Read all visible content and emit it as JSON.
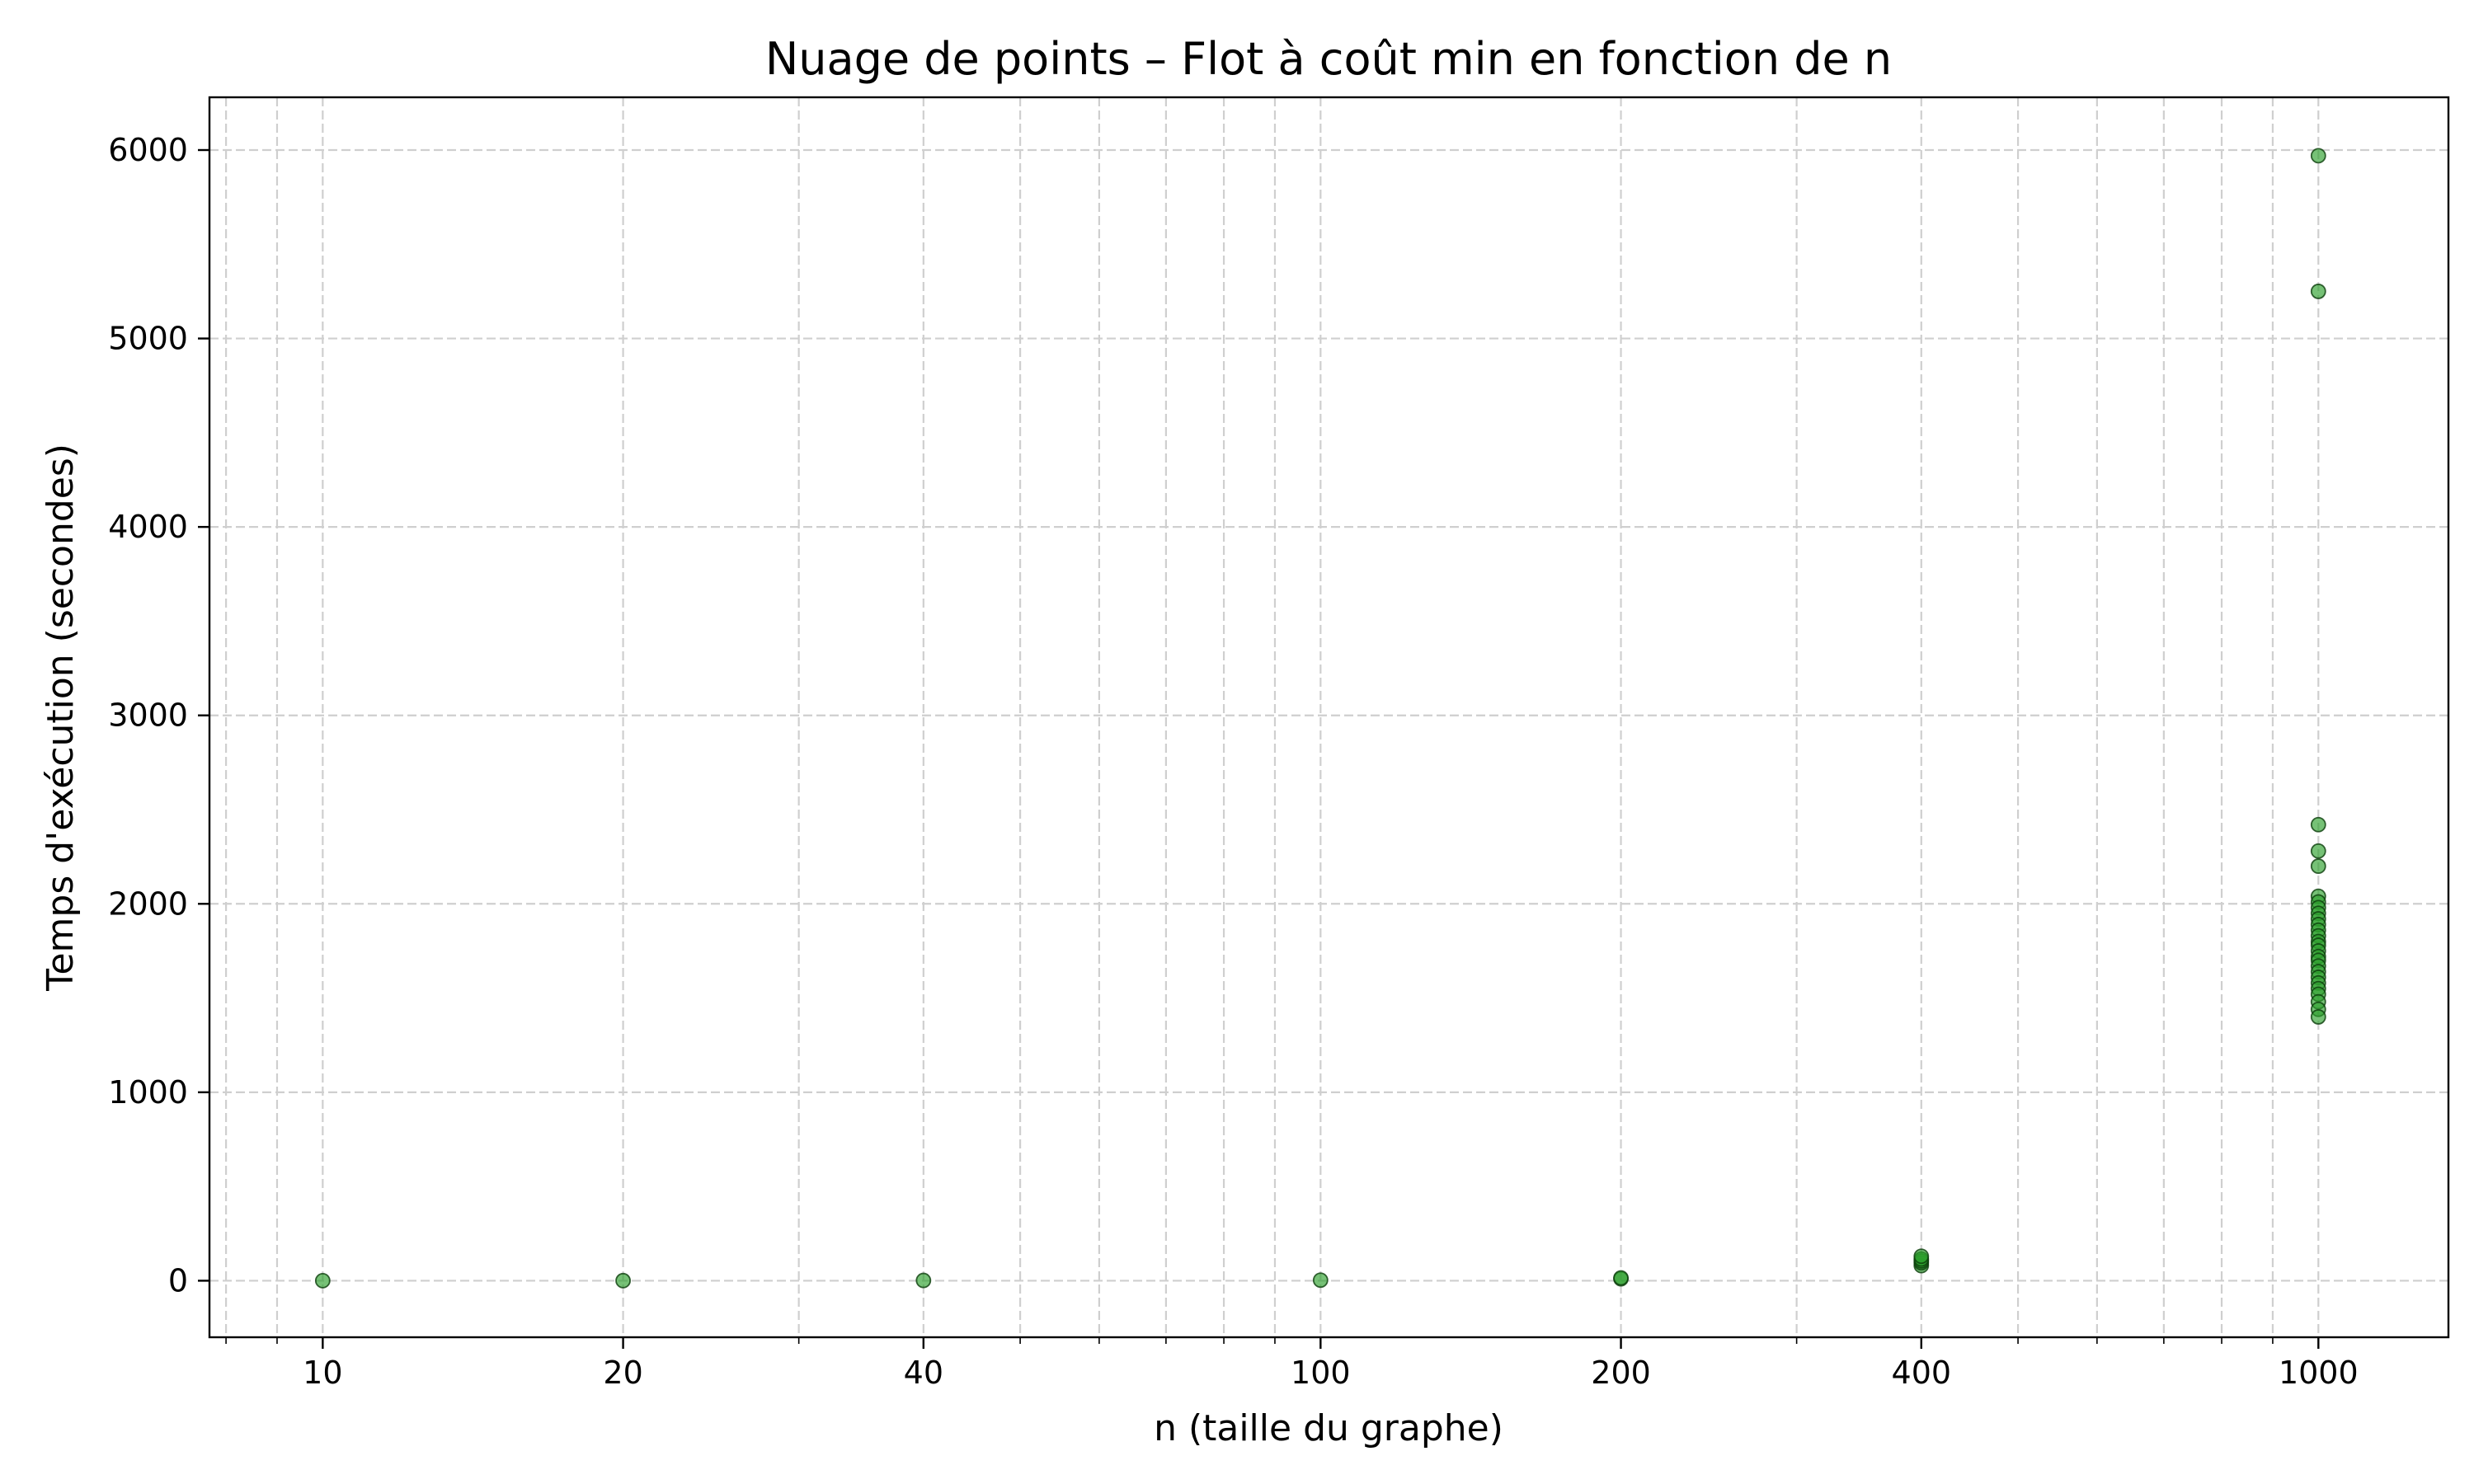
{
  "chart_data": {
    "type": "scatter",
    "title": "Nuage de points – Flot à coût min en fonction de n",
    "xlabel": "n (taille du graphe)",
    "ylabel": "Temps d'exécution (secondes)",
    "x_scale": "log",
    "xlim": [
      7.7,
      1350
    ],
    "ylim": [
      -300,
      6280
    ],
    "x_ticks": [
      10,
      20,
      40,
      100,
      200,
      400,
      1000
    ],
    "x_tick_labels": [
      "10",
      "20",
      "40",
      "100",
      "200",
      "400",
      "1000"
    ],
    "y_ticks": [
      0,
      1000,
      2000,
      3000,
      4000,
      5000,
      6000
    ],
    "y_tick_labels": [
      "0",
      "1000",
      "2000",
      "3000",
      "4000",
      "5000",
      "6000"
    ],
    "grid": true,
    "legend": "none",
    "marker_color": "#2ca02c",
    "marker_edge_color": "#0b3d0b",
    "series": [
      {
        "x": [
          10,
          20,
          40,
          100,
          200,
          200,
          400,
          400,
          400,
          400,
          400,
          1000,
          1000,
          1000,
          1000,
          1000,
          1000,
          1000,
          1000,
          1000,
          1000,
          1000,
          1000,
          1000,
          1000,
          1000,
          1000,
          1000,
          1000,
          1000,
          1000,
          1000,
          1000,
          1000,
          1000,
          1000,
          1000,
          1000
        ],
        "y": [
          0.1,
          0.5,
          1.5,
          3,
          10,
          15,
          80,
          95,
          105,
          115,
          130,
          5970,
          5250,
          2420,
          2280,
          2200,
          2040,
          2010,
          1980,
          1950,
          1920,
          1890,
          1860,
          1830,
          1800,
          1780,
          1750,
          1720,
          1700,
          1670,
          1640,
          1610,
          1580,
          1550,
          1520,
          1480,
          1440,
          1400
        ]
      }
    ]
  }
}
